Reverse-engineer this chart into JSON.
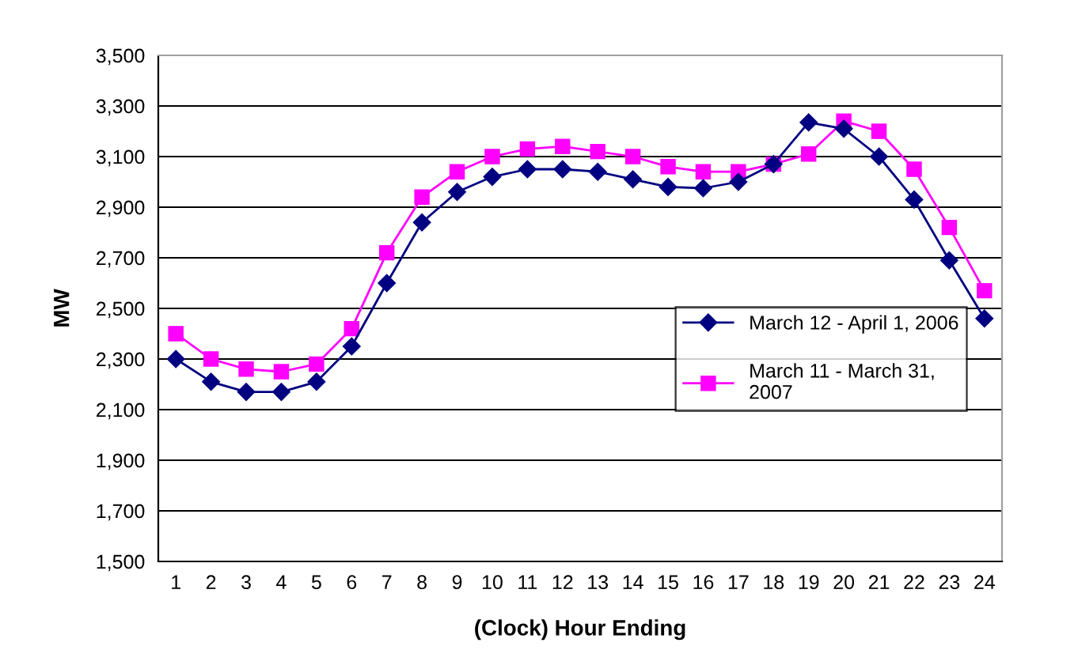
{
  "chart_data": {
    "type": "line",
    "xlabel": "(Clock) Hour Ending",
    "ylabel": "MW",
    "categories": [
      "1",
      "2",
      "3",
      "4",
      "5",
      "6",
      "7",
      "8",
      "9",
      "10",
      "11",
      "12",
      "13",
      "14",
      "15",
      "16",
      "17",
      "18",
      "19",
      "20",
      "21",
      "22",
      "23",
      "24"
    ],
    "series": [
      {
        "name": "March 12 - April 1, 2006",
        "color": "#000080",
        "marker": "diamond",
        "values": [
          2300,
          2210,
          2170,
          2170,
          2210,
          2350,
          2600,
          2840,
          2960,
          3020,
          3050,
          3050,
          3040,
          3010,
          2980,
          2975,
          3000,
          3070,
          3235,
          3210,
          3100,
          2930,
          2690,
          2460
        ]
      },
      {
        "name": "March 11 - March 31,\n2007",
        "color": "#ff00ff",
        "marker": "square",
        "values": [
          2400,
          2300,
          2260,
          2250,
          2280,
          2420,
          2720,
          2940,
          3040,
          3100,
          3130,
          3140,
          3120,
          3100,
          3060,
          3040,
          3040,
          3070,
          3110,
          3240,
          3200,
          3050,
          2820,
          2570
        ]
      }
    ],
    "ylim": [
      1500,
      3500
    ],
    "yticks": [
      {
        "value": 1500,
        "label": "1,500"
      },
      {
        "value": 1700,
        "label": "1,700"
      },
      {
        "value": 1900,
        "label": "1,900"
      },
      {
        "value": 2100,
        "label": "2,100"
      },
      {
        "value": 2300,
        "label": "2,300"
      },
      {
        "value": 2500,
        "label": "2,500"
      },
      {
        "value": 2700,
        "label": "2,700"
      },
      {
        "value": 2900,
        "label": "2,900"
      },
      {
        "value": 3100,
        "label": "3,100"
      },
      {
        "value": 3300,
        "label": "3,300"
      },
      {
        "value": 3500,
        "label": "3,500"
      }
    ],
    "grid": "y",
    "legend": "center right",
    "line_style": "solid"
  }
}
